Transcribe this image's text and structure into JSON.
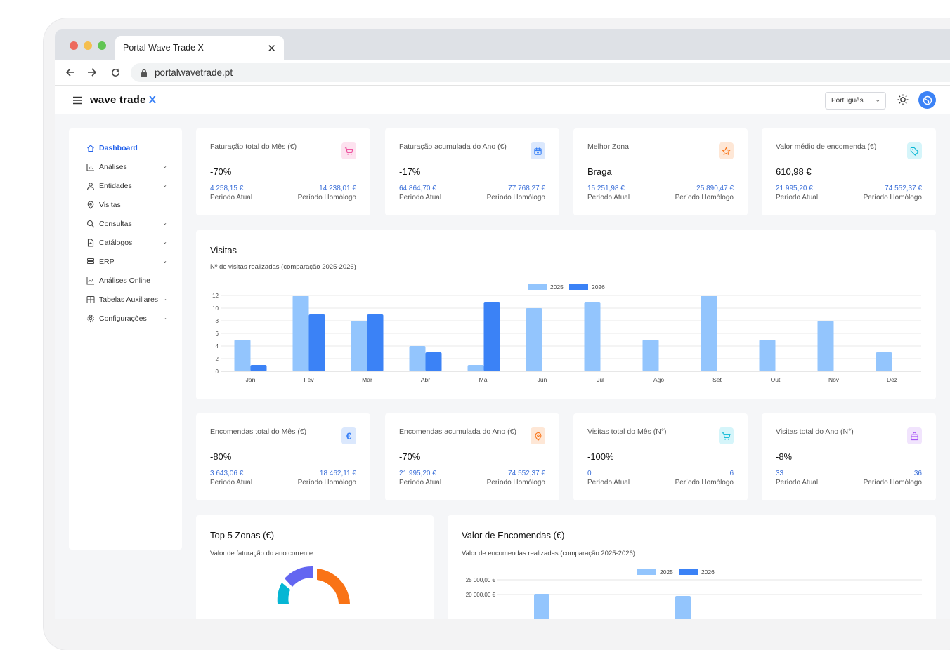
{
  "browser": {
    "tab_title": "Portal Wave Trade X",
    "url": "portalwavetrade.pt"
  },
  "header": {
    "logo_text": "wave trade",
    "logo_mark": "X",
    "language": "Português"
  },
  "sidebar": {
    "items": [
      {
        "label": "Dashboard",
        "icon": "home-icon",
        "active": true,
        "has_chevron": false
      },
      {
        "label": "Análises",
        "icon": "bar-chart-icon",
        "has_chevron": true
      },
      {
        "label": "Entidades",
        "icon": "user-icon",
        "has_chevron": true
      },
      {
        "label": "Visitas",
        "icon": "map-pin-icon",
        "has_chevron": false
      },
      {
        "label": "Consultas",
        "icon": "search-icon",
        "has_chevron": true
      },
      {
        "label": "Catálogos",
        "icon": "file-icon",
        "has_chevron": true
      },
      {
        "label": "ERP",
        "icon": "database-icon",
        "has_chevron": true
      },
      {
        "label": "Análises Online",
        "icon": "line-chart-icon",
        "has_chevron": false
      },
      {
        "label": "Tabelas Auxiliares",
        "icon": "table-icon",
        "has_chevron": true
      },
      {
        "label": "Configurações",
        "icon": "gear-icon",
        "has_chevron": true
      }
    ]
  },
  "kpis_top": [
    {
      "title": "Faturação total do Mês (€)",
      "value": "-70%",
      "current": "4 258,15 €",
      "previous": "14 238,01 €",
      "current_label": "Período Atual",
      "previous_label": "Período Homólogo",
      "icon": "cart-icon",
      "icon_color": "#ec4899",
      "icon_bg": "#fde2ef"
    },
    {
      "title": "Faturação acumulada do Ano (€)",
      "value": "-17%",
      "current": "64 864,70 €",
      "previous": "77 768,27 €",
      "current_label": "Período Atual",
      "previous_label": "Período Homólogo",
      "icon": "calendar-icon",
      "icon_color": "#3b82f6",
      "icon_bg": "#dbe8fd"
    },
    {
      "title": "Melhor Zona",
      "value": "Braga",
      "current": "15 251,98 €",
      "previous": "25 890,47 €",
      "current_label": "Período Atual",
      "previous_label": "Período Homólogo",
      "icon": "star-icon",
      "icon_color": "#f97316",
      "icon_bg": "#fee7d6"
    },
    {
      "title": "Valor médio de encomenda (€)",
      "value": "610,98 €",
      "current": "21 995,20 €",
      "previous": "74 552,37 €",
      "current_label": "Período Atual",
      "previous_label": "Período Homólogo",
      "icon": "tag-icon",
      "icon_color": "#06b6d4",
      "icon_bg": "#d5f5fa"
    }
  ],
  "kpis_bottom": [
    {
      "title": "Encomendas total do Mês (€)",
      "value": "-80%",
      "current": "3 643,06 €",
      "previous": "18 462,11 €",
      "current_label": "Período Atual",
      "previous_label": "Período Homólogo",
      "icon": "euro-icon",
      "icon_color": "#3b82f6",
      "icon_bg": "#dbe8fd"
    },
    {
      "title": "Encomendas acumulada do Ano (€)",
      "value": "-70%",
      "current": "21 995,20 €",
      "previous": "74 552,37 €",
      "current_label": "Período Atual",
      "previous_label": "Período Homólogo",
      "icon": "map-pin-icon",
      "icon_color": "#f97316",
      "icon_bg": "#fee7d6"
    },
    {
      "title": "Visitas total do Mês (N°)",
      "value": "-100%",
      "current": "0",
      "previous": "6",
      "current_label": "Período Atual",
      "previous_label": "Período Homólogo",
      "icon": "cart-icon",
      "icon_color": "#06b6d4",
      "icon_bg": "#d5f5fa"
    },
    {
      "title": "Visitas total do Ano (N°)",
      "value": "-8%",
      "current": "33",
      "previous": "36",
      "current_label": "Período Atual",
      "previous_label": "Período Homólogo",
      "icon": "bag-icon",
      "icon_color": "#a855f7",
      "icon_bg": "#f1e4fd"
    }
  ],
  "visitas": {
    "title": "Visitas",
    "subtitle": "Nº de visitas realizadas (comparação 2025-2026)"
  },
  "top_zonas": {
    "title": "Top 5 Zonas (€)",
    "subtitle": "Valor de faturação do ano corrente."
  },
  "valor_encomendas": {
    "title": "Valor de Encomendas (€)",
    "subtitle": "Valor de encomendas realizadas (comparação 2025-2026)"
  },
  "chart_data": [
    {
      "type": "bar",
      "categories": [
        "Jan",
        "Fev",
        "Mar",
        "Abr",
        "Mai",
        "Jun",
        "Jul",
        "Ago",
        "Set",
        "Out",
        "Nov",
        "Dez"
      ],
      "series": [
        {
          "name": "2025",
          "color": "#93c5fd",
          "values": [
            5,
            12,
            8,
            4,
            1,
            10,
            11,
            5,
            12,
            5,
            8,
            3
          ]
        },
        {
          "name": "2026",
          "color": "#3b82f6",
          "values": [
            1,
            9,
            9,
            3,
            11,
            0,
            0,
            0,
            0,
            0,
            0,
            0
          ]
        }
      ],
      "yticks": [
        "0",
        "2",
        "4",
        "6",
        "8",
        "10",
        "12"
      ],
      "ylim": [
        0,
        12
      ],
      "grid": true,
      "legend": "top-center"
    },
    {
      "type": "pie",
      "title": "Top 5 Zonas (€)",
      "slices_visible": [
        {
          "color": "#f97316"
        },
        {
          "color": "#6366f1"
        },
        {
          "color": "#06b6d4"
        }
      ]
    },
    {
      "type": "bar",
      "series": [
        {
          "name": "2025",
          "color": "#93c5fd"
        },
        {
          "name": "2026",
          "color": "#3b82f6"
        }
      ],
      "yticks_visible": [
        "25 000,00 €",
        "20 000,00 €"
      ],
      "grid": true,
      "legend": "top-center"
    }
  ]
}
